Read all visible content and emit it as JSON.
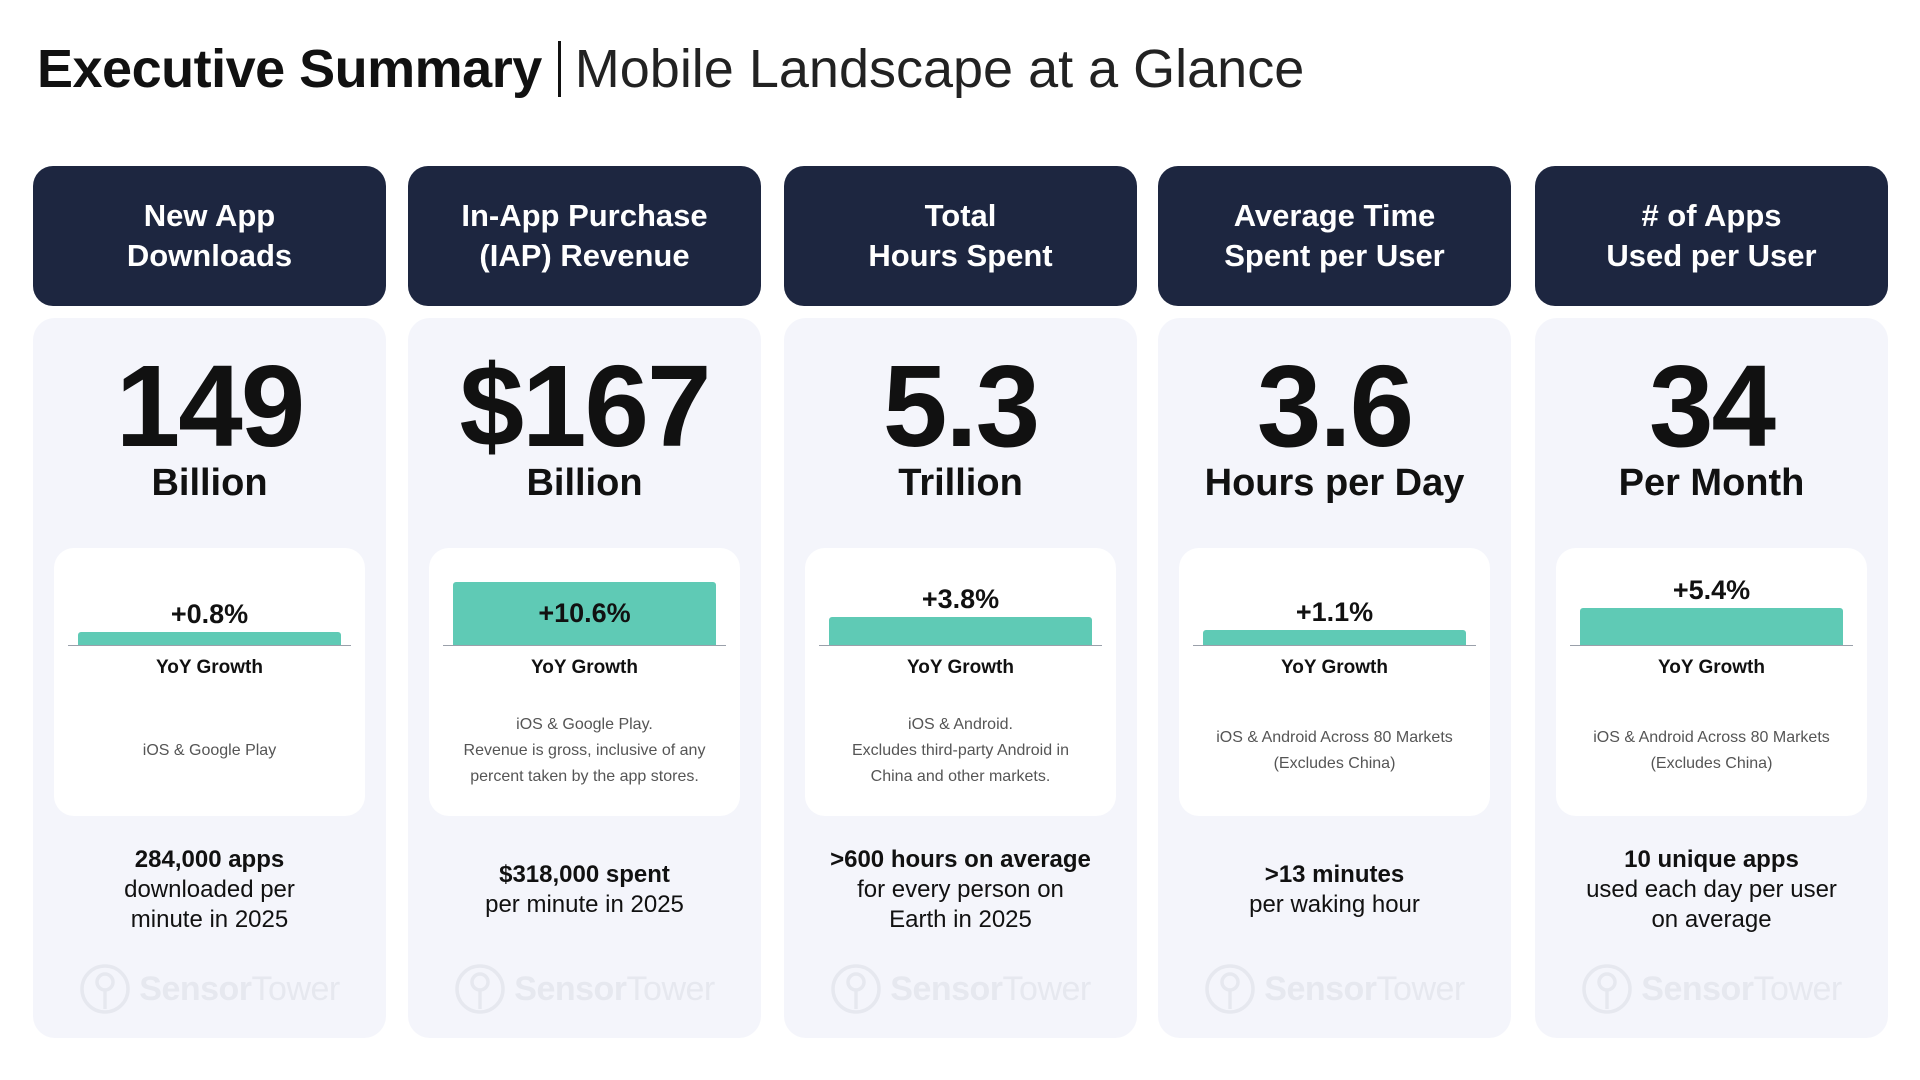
{
  "title": {
    "bold": "Executive Summary",
    "light": "Mobile Landscape at a Glance"
  },
  "brand": {
    "name_bold": "Sensor",
    "name_light": "Tower",
    "watermark_color": "#e6e8ef"
  },
  "colors": {
    "header_bg": "#1d2640",
    "bar": "#5fcab5",
    "panel_bg": "#f4f5fb"
  },
  "yoy_label": "YoY Growth",
  "metrics": [
    {
      "header": [
        "New App",
        "Downloads"
      ],
      "value": "149",
      "unit": "Billion",
      "growth": "+0.8%",
      "growth_pct": 0.8,
      "note": [
        "iOS & Google Play"
      ],
      "footer_bold": [
        "284,000 apps"
      ],
      "footer": [
        "downloaded per",
        "minute in 2025"
      ]
    },
    {
      "header": [
        "In-App Purchase",
        "(IAP) Revenue"
      ],
      "value": "$167",
      "unit": "Billion",
      "growth": "+10.6%",
      "growth_pct": 10.6,
      "note": [
        "iOS & Google Play.",
        "Revenue is gross, inclusive of any",
        "percent taken by the app stores."
      ],
      "footer_bold": [
        "$318,000 spent"
      ],
      "footer": [
        "per minute in 2025"
      ]
    },
    {
      "header": [
        "Total",
        "Hours Spent"
      ],
      "value": "5.3",
      "unit": "Trillion",
      "growth": "+3.8%",
      "growth_pct": 3.8,
      "note": [
        "iOS & Android.",
        "Excludes third-party Android in",
        "China and other markets."
      ],
      "footer_bold": [
        ">600 hours on average"
      ],
      "footer": [
        "for every person on",
        "Earth in 2025"
      ]
    },
    {
      "header": [
        "Average Time",
        "Spent per User"
      ],
      "value": "3.6",
      "unit": "Hours per Day",
      "growth": "+1.1%",
      "growth_pct": 1.1,
      "note": [
        "iOS & Android Across 80 Markets",
        "(Excludes China)"
      ],
      "footer_bold": [
        ">13 minutes"
      ],
      "footer": [
        "per waking hour"
      ]
    },
    {
      "header": [
        "# of Apps",
        "Used per User"
      ],
      "value": "34",
      "unit": "Per Month",
      "growth": "+5.4%",
      "growth_pct": 5.4,
      "note": [
        "iOS & Android Across 80 Markets",
        "(Excludes China)"
      ],
      "footer_bold": [
        "10 unique apps"
      ],
      "footer": [
        "used each day per user",
        "on average"
      ]
    }
  ]
}
